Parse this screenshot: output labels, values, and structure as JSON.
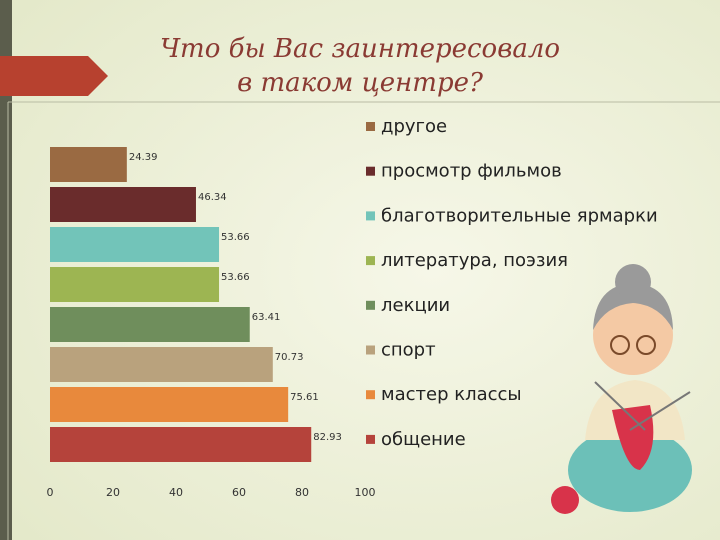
{
  "chart_data": {
    "type": "bar",
    "orientation": "horizontal",
    "title": [
      "Что бы Вас заинтересовало",
      "в таком центре?"
    ],
    "categories": [
      "другое",
      "просмотр фильмов",
      "благотворительные ярмарки",
      "литература, поэзия",
      "лекции",
      "спорт",
      "мастер классы",
      "общение"
    ],
    "values": [
      24.39,
      46.34,
      53.66,
      53.66,
      63.41,
      70.73,
      75.61,
      82.93
    ],
    "colors": [
      "#9a6a42",
      "#6a2c2c",
      "#72c4b9",
      "#9db552",
      "#6f8e5c",
      "#b9a27d",
      "#e8893c",
      "#b5433b"
    ],
    "xlim": [
      0,
      100
    ],
    "xticks": [
      0,
      20,
      40,
      60,
      80,
      100
    ]
  }
}
